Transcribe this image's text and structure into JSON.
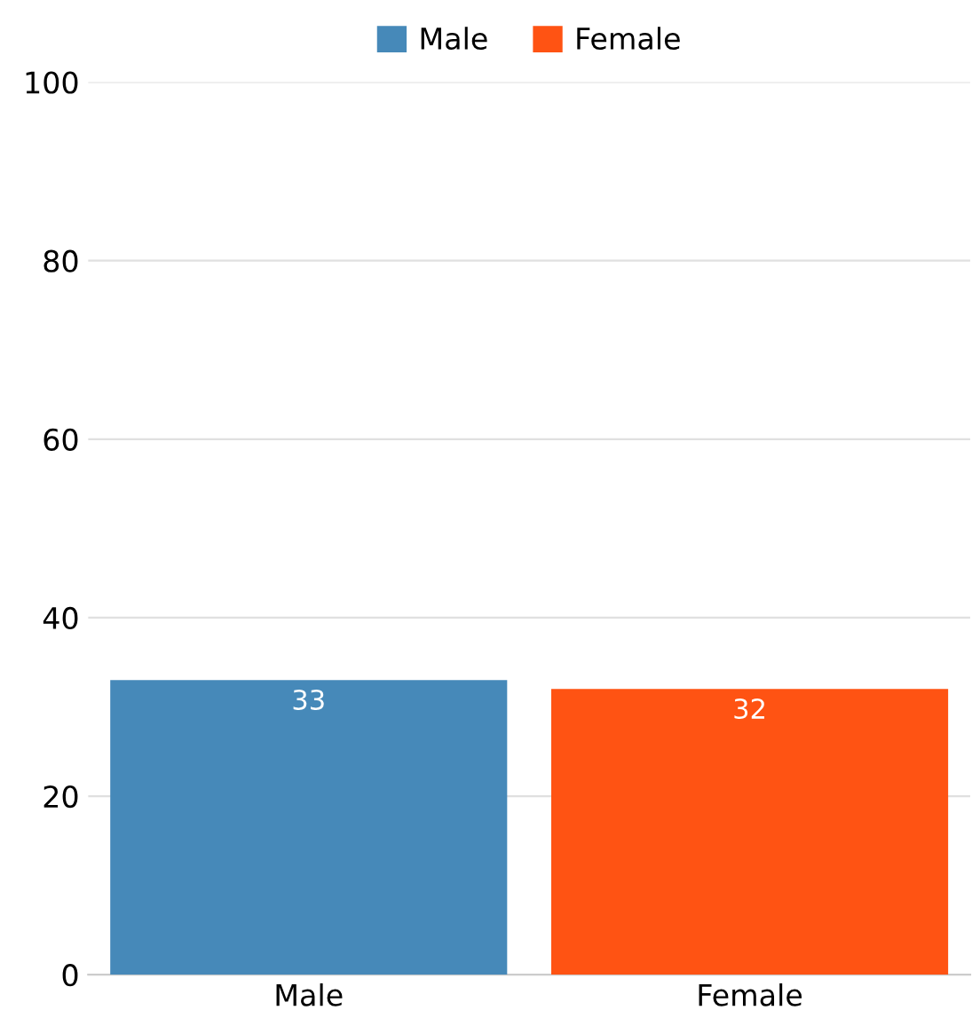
{
  "chart_data": {
    "type": "bar",
    "categories": [
      "Male",
      "Female"
    ],
    "stacked": true,
    "series": [
      {
        "name": "Male",
        "color": "#4689b9",
        "values": [
          33,
          null
        ]
      },
      {
        "name": "Female",
        "color": "#ff5313",
        "values": [
          null,
          32
        ]
      }
    ],
    "ylim": [
      0,
      100
    ],
    "yticks": [
      0,
      20,
      40,
      60,
      80,
      100
    ],
    "grid": "y",
    "legend": "top",
    "data_labels": true
  }
}
